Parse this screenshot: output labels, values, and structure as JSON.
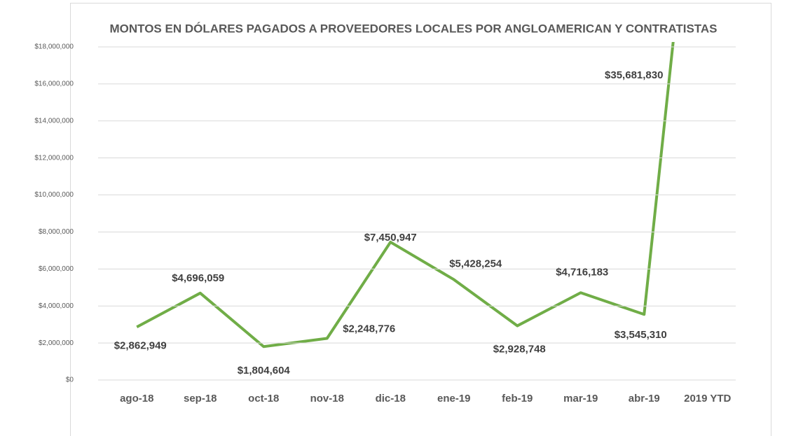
{
  "chart_data": {
    "type": "line",
    "title": "MONTOS EN DÓLARES PAGADOS A PROVEEDORES LOCALES POR ANGLOAMERICAN Y CONTRATISTAS",
    "categories": [
      "ago-18",
      "sep-18",
      "oct-18",
      "nov-18",
      "dic-18",
      "ene-19",
      "feb-19",
      "mar-19",
      "abr-19",
      "2019 YTD"
    ],
    "values": [
      2862949,
      4696059,
      1804604,
      2248776,
      7450947,
      5428254,
      2928748,
      4716183,
      3545310,
      35681830
    ],
    "value_labels": [
      "$2,862,949",
      "$4,696,059",
      "$1,804,604",
      "$2,248,776",
      "$7,450,947",
      "$5,428,254",
      "$2,928,748",
      "$4,716,183",
      "$3,545,310",
      "$35,681,830"
    ],
    "color": "#70ad47",
    "ylim": [
      0,
      18000000
    ],
    "yticks": [
      {
        "value": 0,
        "label": "$0"
      },
      {
        "value": 2000000,
        "label": "$2,000,000"
      },
      {
        "value": 4000000,
        "label": "$4,000,000"
      },
      {
        "value": 6000000,
        "label": "$6,000,000"
      },
      {
        "value": 8000000,
        "label": "$8,000,000"
      },
      {
        "value": 10000000,
        "label": "$10,000,000"
      },
      {
        "value": 12000000,
        "label": "$12,000,000"
      },
      {
        "value": 14000000,
        "label": "$14,000,000"
      },
      {
        "value": 16000000,
        "label": "$16,000,000"
      },
      {
        "value": 18000000,
        "label": "$18,000,000"
      }
    ],
    "grid": true
  }
}
